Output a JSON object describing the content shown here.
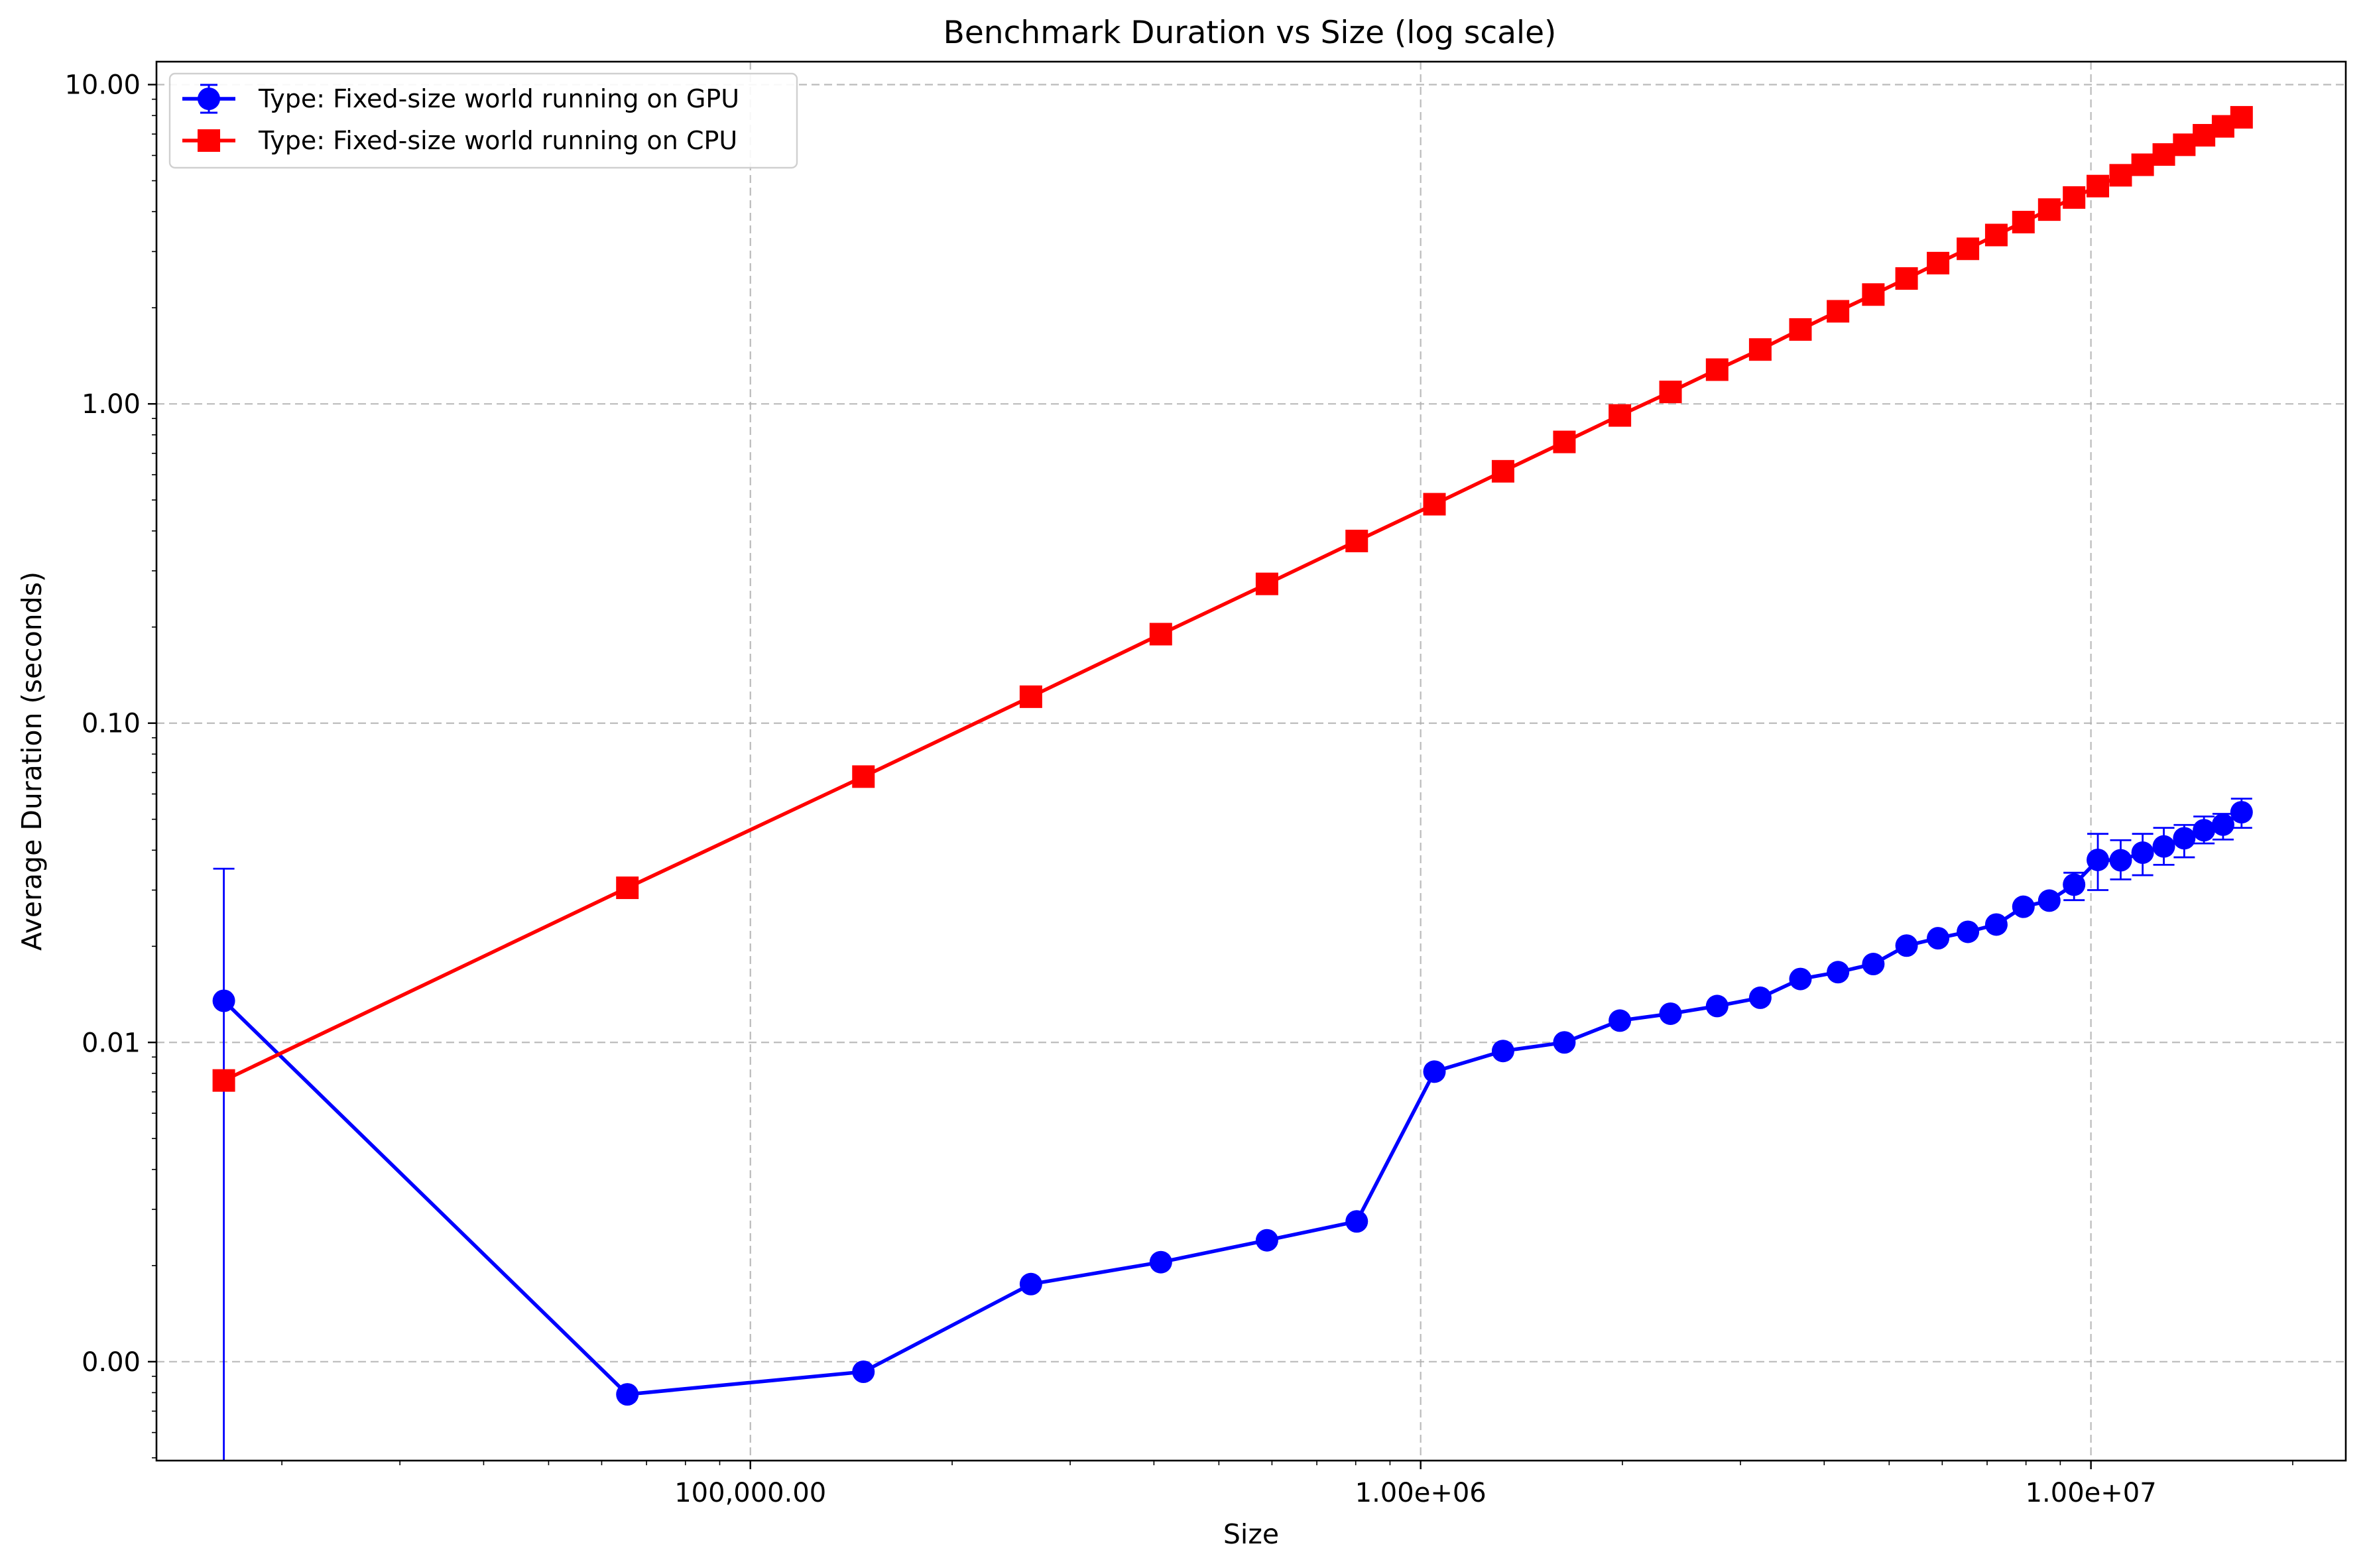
{
  "chart_data": {
    "type": "line",
    "title": "Benchmark Duration vs Size (log scale)",
    "xlabel": "Size",
    "ylabel": "Average Duration (seconds)",
    "xscale": "log",
    "yscale": "log",
    "xlim": [
      13000,
      24000000
    ],
    "ylim": [
      0.00049,
      11.8
    ],
    "x_ticks": [
      100000,
      1000000,
      10000000
    ],
    "x_tick_labels": [
      "100,000.00",
      "1.00e+06",
      "1.00e+07"
    ],
    "y_ticks": [
      0.001,
      0.01,
      0.1,
      1,
      10
    ],
    "y_tick_labels": [
      "0.00",
      "0.01",
      "0.10",
      "1.00",
      "10.00"
    ],
    "grid": true,
    "legend_position": "upper left",
    "series": [
      {
        "name": "Type: Fixed-size world running on GPU",
        "color": "#0000ff",
        "marker": "circle",
        "error_bars": true,
        "x": [
          16384,
          65536,
          147456,
          262144,
          409600,
          589824,
          802816,
          1048576,
          1327104,
          1638400,
          1982464,
          2359296,
          2768896,
          3211264,
          3686400,
          4194304,
          4734976,
          5308416,
          5914624,
          6553600,
          7225344,
          7929856,
          8667136,
          9437184,
          10240000,
          11075584,
          11943936,
          12845056,
          13778944,
          14745600,
          15745024,
          16777216
        ],
        "y": [
          0.0135,
          0.00079,
          0.00093,
          0.00175,
          0.00205,
          0.0024,
          0.00275,
          0.0081,
          0.0094,
          0.01,
          0.0117,
          0.0123,
          0.013,
          0.0138,
          0.0158,
          0.0166,
          0.0176,
          0.0201,
          0.0212,
          0.0222,
          0.0234,
          0.0266,
          0.0278,
          0.0312,
          0.0373,
          0.0372,
          0.0393,
          0.0411,
          0.0436,
          0.0462,
          0.0481,
          0.0526
        ],
        "y_err_low": [
          0.0135,
          0,
          0,
          0,
          0,
          0,
          0,
          0,
          0,
          0,
          0,
          0,
          0,
          0,
          0,
          0,
          0,
          0,
          0,
          0,
          0,
          0,
          0,
          0.0033,
          0.0073,
          0.0048,
          0.0059,
          0.0051,
          0.0056,
          0.0042,
          0.0049,
          0.0056
        ],
        "y_err_high": [
          0.0215,
          0,
          0,
          0,
          0,
          0,
          0,
          0,
          0,
          0,
          0,
          0,
          0,
          0,
          0,
          0,
          0,
          0,
          0,
          0,
          0,
          0,
          0,
          0.0028,
          0.0077,
          0.0058,
          0.0057,
          0.0059,
          0.0044,
          0.0048,
          0.0039,
          0.0054
        ]
      },
      {
        "name": "Type: Fixed-size world running on CPU",
        "color": "#ff0000",
        "marker": "square",
        "error_bars": false,
        "x": [
          16384,
          65536,
          147456,
          262144,
          409600,
          589824,
          802816,
          1048576,
          1327104,
          1638400,
          1982464,
          2359296,
          2768896,
          3211264,
          3686400,
          4194304,
          4734976,
          5308416,
          5914624,
          6553600,
          7225344,
          7929856,
          8667136,
          9437184,
          10240000,
          11075584,
          11943936,
          12845056,
          13778944,
          14745600,
          15745024,
          16777216
        ],
        "y": [
          0.0076,
          0.0305,
          0.068,
          0.121,
          0.19,
          0.273,
          0.372,
          0.485,
          0.615,
          0.76,
          0.92,
          1.09,
          1.28,
          1.48,
          1.71,
          1.95,
          2.2,
          2.47,
          2.76,
          3.06,
          3.38,
          3.71,
          4.06,
          4.43,
          4.81,
          5.2,
          5.61,
          6.04,
          6.48,
          6.94,
          7.4,
          7.9
        ]
      }
    ]
  }
}
